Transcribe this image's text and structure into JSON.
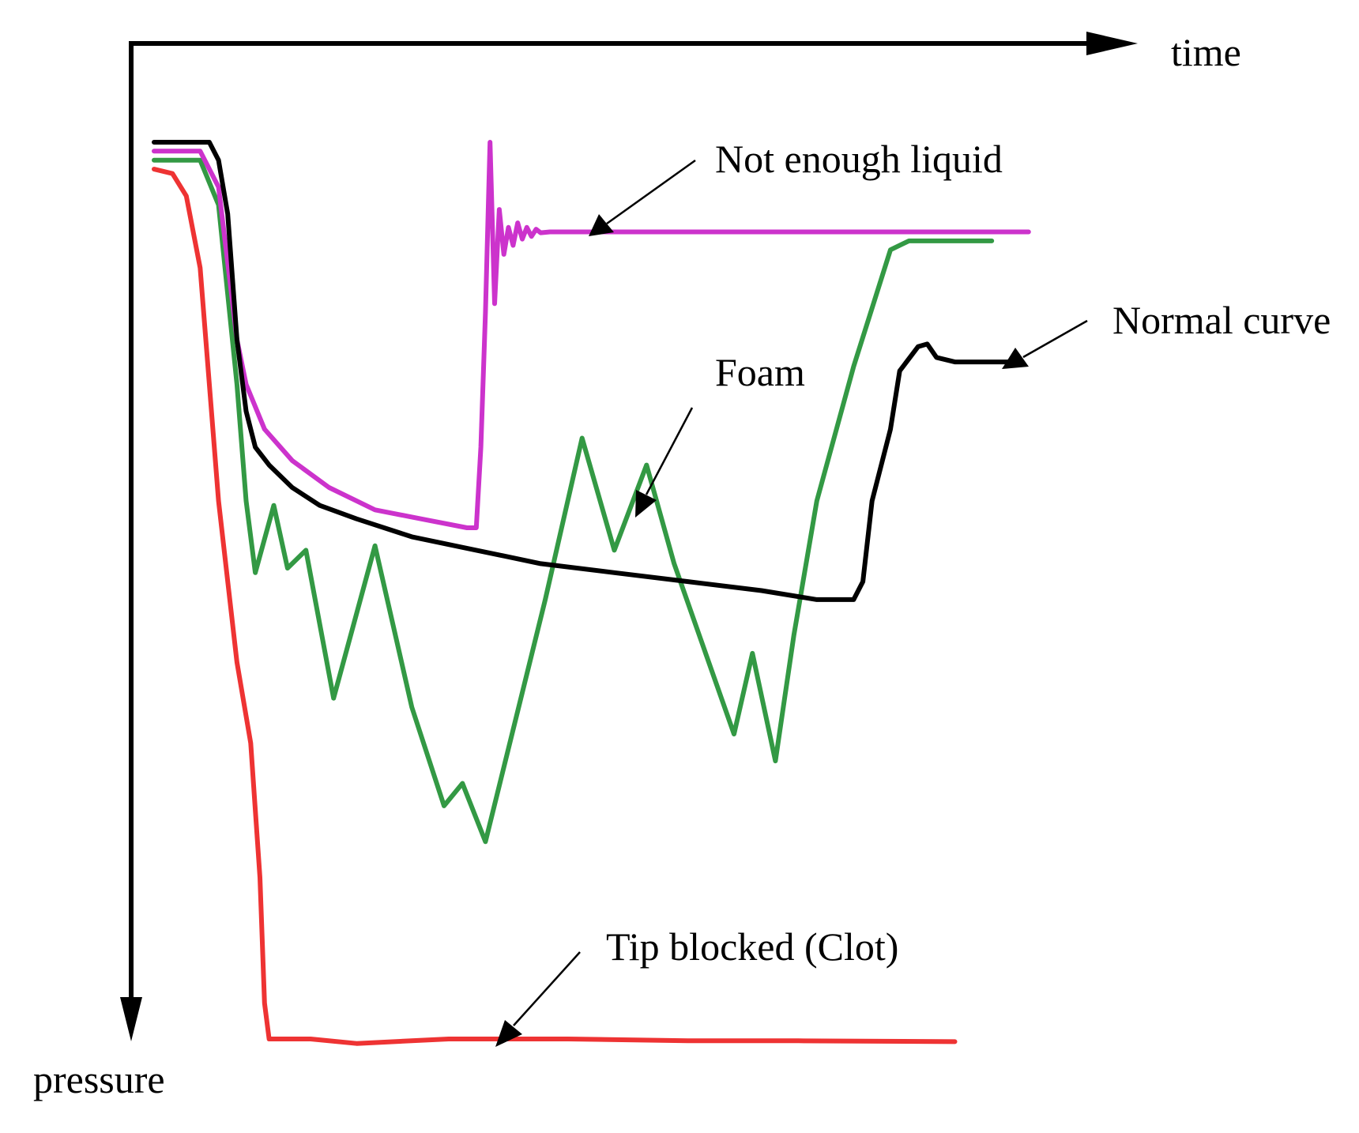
{
  "chart_data": {
    "type": "line",
    "xlabel": "time",
    "ylabel": "pressure",
    "grid": false,
    "legend": "none",
    "series": [
      {
        "name": "Normal curve",
        "color": "#000000",
        "points": [
          [
            0,
            0
          ],
          [
            0.06,
            0
          ],
          [
            0.07,
            0.02
          ],
          [
            0.08,
            0.08
          ],
          [
            0.09,
            0.22
          ],
          [
            0.1,
            0.3
          ],
          [
            0.11,
            0.34
          ],
          [
            0.125,
            0.36
          ],
          [
            0.15,
            0.385
          ],
          [
            0.18,
            0.405
          ],
          [
            0.22,
            0.42
          ],
          [
            0.28,
            0.44
          ],
          [
            0.35,
            0.455
          ],
          [
            0.42,
            0.47
          ],
          [
            0.5,
            0.48
          ],
          [
            0.58,
            0.49
          ],
          [
            0.66,
            0.5
          ],
          [
            0.72,
            0.51
          ],
          [
            0.76,
            0.51
          ],
          [
            0.77,
            0.49
          ],
          [
            0.78,
            0.4
          ],
          [
            0.8,
            0.32
          ],
          [
            0.81,
            0.255
          ],
          [
            0.83,
            0.228
          ],
          [
            0.84,
            0.225
          ],
          [
            0.85,
            0.24
          ],
          [
            0.87,
            0.245
          ],
          [
            0.91,
            0.245
          ],
          [
            0.93,
            0.245
          ]
        ]
      },
      {
        "name": "Not enough liquid",
        "color": "#cc33cc",
        "points": [
          [
            0,
            0.01
          ],
          [
            0.05,
            0.01
          ],
          [
            0.07,
            0.05
          ],
          [
            0.09,
            0.22
          ],
          [
            0.1,
            0.27
          ],
          [
            0.12,
            0.32
          ],
          [
            0.15,
            0.355
          ],
          [
            0.19,
            0.385
          ],
          [
            0.24,
            0.41
          ],
          [
            0.29,
            0.42
          ],
          [
            0.34,
            0.43
          ],
          [
            0.35,
            0.43
          ],
          [
            0.355,
            0.34
          ],
          [
            0.36,
            0.19
          ],
          [
            0.365,
            0.0
          ],
          [
            0.37,
            0.18
          ],
          [
            0.375,
            0.075
          ],
          [
            0.38,
            0.125
          ],
          [
            0.385,
            0.095
          ],
          [
            0.39,
            0.115
          ],
          [
            0.395,
            0.09
          ],
          [
            0.4,
            0.108
          ],
          [
            0.405,
            0.095
          ],
          [
            0.41,
            0.105
          ],
          [
            0.415,
            0.097
          ],
          [
            0.42,
            0.101
          ],
          [
            0.43,
            0.1
          ],
          [
            0.55,
            0.1
          ],
          [
            0.75,
            0.1
          ],
          [
            0.95,
            0.1
          ]
        ]
      },
      {
        "name": "Foam",
        "color": "#339944",
        "points": [
          [
            0,
            0.02
          ],
          [
            0.05,
            0.02
          ],
          [
            0.07,
            0.07
          ],
          [
            0.09,
            0.27
          ],
          [
            0.1,
            0.4
          ],
          [
            0.11,
            0.48
          ],
          [
            0.13,
            0.405
          ],
          [
            0.145,
            0.475
          ],
          [
            0.165,
            0.455
          ],
          [
            0.195,
            0.62
          ],
          [
            0.24,
            0.45
          ],
          [
            0.28,
            0.63
          ],
          [
            0.315,
            0.74
          ],
          [
            0.335,
            0.715
          ],
          [
            0.36,
            0.78
          ],
          [
            0.425,
            0.51
          ],
          [
            0.465,
            0.33
          ],
          [
            0.5,
            0.455
          ],
          [
            0.535,
            0.36
          ],
          [
            0.565,
            0.47
          ],
          [
            0.63,
            0.66
          ],
          [
            0.65,
            0.57
          ],
          [
            0.675,
            0.69
          ],
          [
            0.695,
            0.55
          ],
          [
            0.72,
            0.4
          ],
          [
            0.76,
            0.25
          ],
          [
            0.8,
            0.12
          ],
          [
            0.82,
            0.11
          ],
          [
            0.91,
            0.11
          ]
        ]
      },
      {
        "name": "Tip blocked (Clot)",
        "color": "#ee3333",
        "points": [
          [
            0,
            0.03
          ],
          [
            0.02,
            0.035
          ],
          [
            0.035,
            0.06
          ],
          [
            0.05,
            0.14
          ],
          [
            0.07,
            0.4
          ],
          [
            0.09,
            0.58
          ],
          [
            0.105,
            0.67
          ],
          [
            0.115,
            0.82
          ],
          [
            0.12,
            0.96
          ],
          [
            0.125,
            1.0
          ],
          [
            0.17,
            1.0
          ],
          [
            0.22,
            1.005
          ],
          [
            0.32,
            1.0
          ],
          [
            0.45,
            1.0
          ],
          [
            0.58,
            1.002
          ],
          [
            0.7,
            1.002
          ],
          [
            0.87,
            1.003
          ]
        ]
      }
    ],
    "annotations": [
      {
        "text": "Not enough liquid",
        "target_series": "Not enough liquid"
      },
      {
        "text": "Normal curve",
        "target_series": "Normal curve"
      },
      {
        "text": "Foam",
        "target_series": "Foam"
      },
      {
        "text": "Tip blocked (Clot)",
        "target_series": "Tip blocked (Clot)"
      }
    ]
  }
}
